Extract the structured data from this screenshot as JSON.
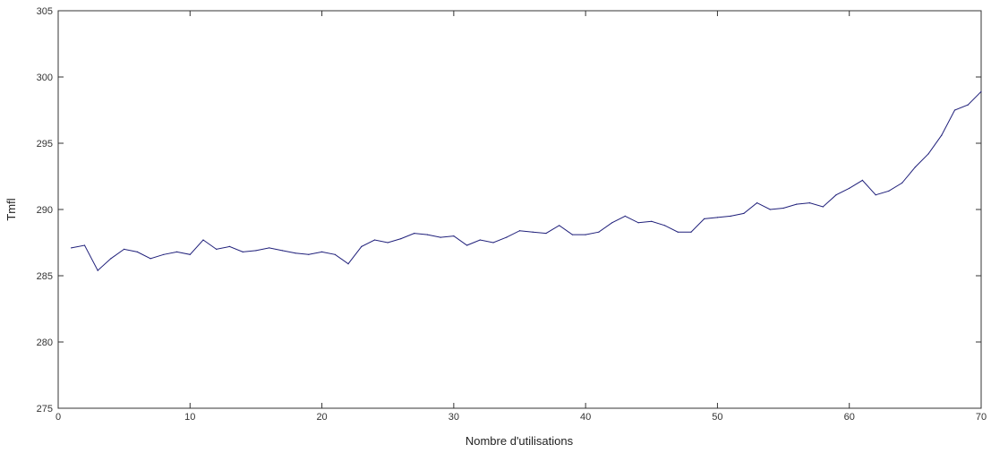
{
  "chart_data": {
    "type": "line",
    "title": "",
    "xlabel": "Nombre d'utilisations",
    "ylabel": "Tmfl",
    "xlim": [
      0,
      70
    ],
    "ylim": [
      275,
      305
    ],
    "xticks": [
      0,
      10,
      20,
      30,
      40,
      50,
      60,
      70
    ],
    "yticks": [
      275,
      280,
      285,
      290,
      295,
      300,
      305
    ],
    "grid": false,
    "legend": "none",
    "line_color": "#1f1f7a",
    "series": [
      {
        "x": [
          1,
          2,
          3,
          4,
          5,
          6,
          7,
          8,
          9,
          10,
          11,
          12,
          13,
          14,
          15,
          16,
          17,
          18,
          19,
          20,
          21,
          22,
          23,
          24,
          25,
          26,
          27,
          28,
          29,
          30,
          31,
          32,
          33,
          34,
          35,
          36,
          37,
          38,
          39,
          40,
          41,
          42,
          43,
          44,
          45,
          46,
          47,
          48,
          49,
          50,
          51,
          52,
          53,
          54,
          55,
          56,
          57,
          58,
          59,
          60,
          61,
          62,
          63,
          64,
          65,
          66,
          67,
          68,
          69,
          70
        ],
        "values": [
          287.1,
          287.3,
          285.4,
          286.3,
          287.0,
          286.8,
          286.3,
          286.6,
          286.8,
          286.6,
          287.7,
          287.0,
          287.2,
          286.8,
          286.9,
          287.1,
          286.9,
          286.7,
          286.6,
          286.8,
          286.6,
          285.9,
          287.2,
          287.7,
          287.5,
          287.8,
          288.2,
          288.1,
          287.9,
          288.0,
          287.3,
          287.7,
          287.5,
          287.9,
          288.4,
          288.3,
          288.2,
          288.8,
          288.1,
          288.1,
          288.3,
          289.0,
          289.5,
          289.0,
          289.1,
          288.8,
          288.3,
          288.3,
          289.3,
          289.4,
          289.5,
          289.7,
          290.5,
          290.0,
          290.1,
          290.4,
          290.5,
          290.2,
          291.1,
          291.6,
          292.2,
          291.1,
          291.4,
          292.0,
          293.2,
          294.2,
          295.6,
          297.5,
          297.9,
          298.9
        ]
      }
    ]
  }
}
